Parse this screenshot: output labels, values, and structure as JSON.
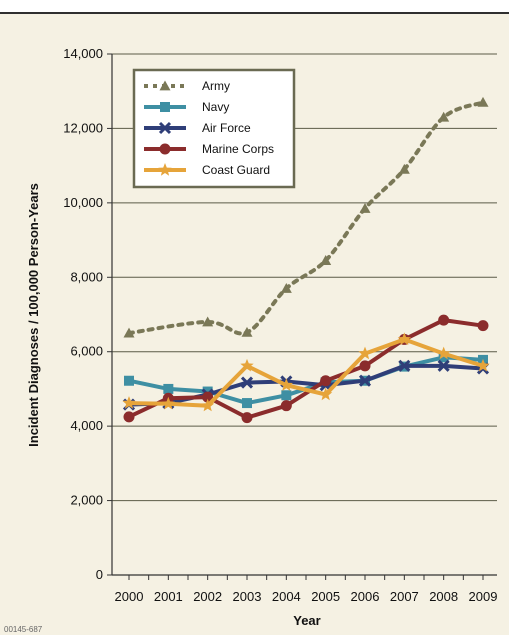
{
  "figure_id": "00145-687",
  "chart_data": {
    "type": "line",
    "xlabel": "Year",
    "ylabel": "Incident Diagnoses / 100,000 Person-Years",
    "x": [
      "2000",
      "2001",
      "2002",
      "2003",
      "2004",
      "2005",
      "2006",
      "2007",
      "2008",
      "2009"
    ],
    "ylim": [
      0,
      14000
    ],
    "yticks": [
      0,
      2000,
      4000,
      6000,
      8000,
      10000,
      12000,
      14000
    ],
    "ytick_labels": [
      "0",
      "2,000",
      "4,000",
      "6,000",
      "8,000",
      "10,000",
      "12,000",
      "14,000"
    ],
    "grid": true,
    "legend_position": "top-left",
    "series": [
      {
        "name": "Army",
        "color": "#7a7857",
        "marker": "triangle",
        "dashed": true,
        "values": [
          6500,
          null,
          6800,
          6520,
          7700,
          8450,
          9850,
          10900,
          12300,
          12700
        ]
      },
      {
        "name": "Navy",
        "color": "#3e8fa3",
        "marker": "square",
        "dashed": false,
        "values": [
          5220,
          5000,
          4930,
          4620,
          4830,
          5180,
          5220,
          5600,
          5850,
          5780
        ]
      },
      {
        "name": "Air Force",
        "color": "#2f3e78",
        "marker": "x",
        "dashed": false,
        "values": [
          4580,
          4620,
          4850,
          5170,
          5200,
          5100,
          5220,
          5620,
          5620,
          5550
        ]
      },
      {
        "name": "Marine Corps",
        "color": "#8b2c2c",
        "marker": "circle",
        "dashed": false,
        "values": [
          4250,
          4750,
          4780,
          4230,
          4550,
          5220,
          5620,
          6330,
          6850,
          6700
        ]
      },
      {
        "name": "Coast Guard",
        "color": "#e6a43a",
        "marker": "star",
        "dashed": false,
        "values": [
          4620,
          4600,
          4550,
          5620,
          5100,
          4850,
          5950,
          6330,
          5950,
          5620
        ]
      }
    ]
  }
}
